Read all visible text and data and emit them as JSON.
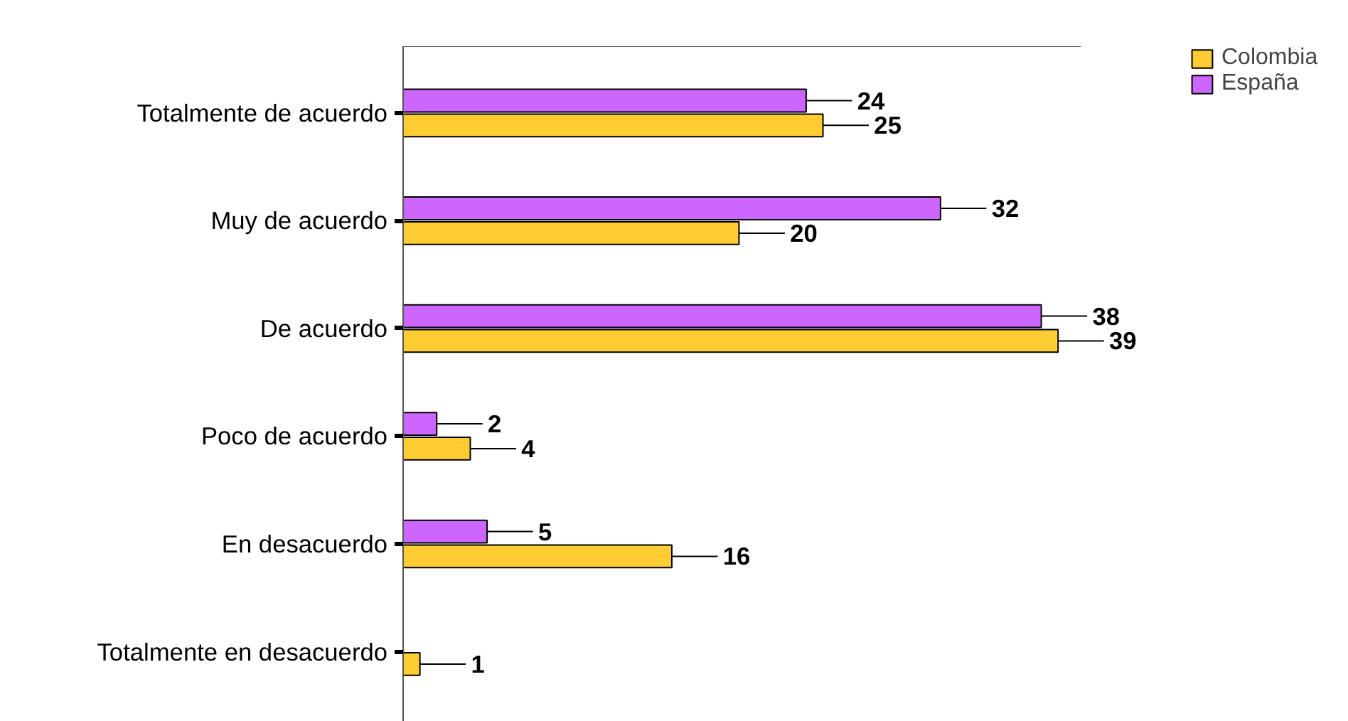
{
  "chart_data": {
    "type": "bar",
    "orientation": "horizontal",
    "data_labels": true,
    "legend": "top right",
    "categories": [
      "Totalmente de acuerdo",
      "Muy de acuerdo",
      "De acuerdo",
      "Poco de acuerdo",
      "En desacuerdo",
      "Totalmente en desacuerdo"
    ],
    "series": [
      {
        "name": "Colombia",
        "color": "#ffcc33",
        "values": [
          25,
          20,
          39,
          4,
          16,
          1
        ]
      },
      {
        "name": "España",
        "color": "#cc66ff",
        "values": [
          24,
          32,
          38,
          2,
          5,
          null
        ]
      }
    ]
  }
}
